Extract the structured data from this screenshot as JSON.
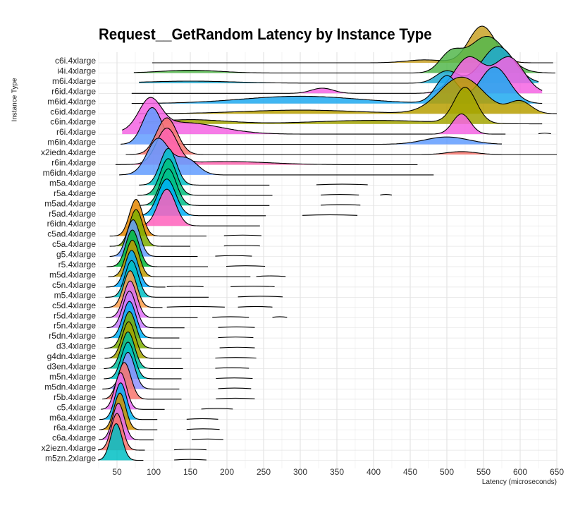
{
  "chart_data": {
    "type": "ridgeline",
    "title": "Request__GetRandom Latency by Instance Type",
    "xlabel": "Latency (microseconds)",
    "ylabel": "Instance Type",
    "xlim": [
      25,
      650
    ],
    "x_ticks": [
      50,
      100,
      150,
      200,
      250,
      300,
      350,
      400,
      450,
      500,
      550,
      600,
      650
    ],
    "grid": true,
    "legend": "none",
    "categories": [
      "c6i.4xlarge",
      "i4i.4xlarge",
      "m6i.4xlarge",
      "r6id.4xlarge",
      "m6id.4xlarge",
      "c6id.4xlarge",
      "c6in.4xlarge",
      "r6i.4xlarge",
      "m6in.4xlarge",
      "x2iedn.4xlarge",
      "r6in.4xlarge",
      "m6idn.4xlarge",
      "m5a.4xlarge",
      "r5a.4xlarge",
      "m5ad.4xlarge",
      "r5ad.4xlarge",
      "r6idn.4xlarge",
      "c5ad.4xlarge",
      "c5a.4xlarge",
      "g5.4xlarge",
      "r5.4xlarge",
      "m5d.4xlarge",
      "c5n.4xlarge",
      "m5.4xlarge",
      "c5d.4xlarge",
      "r5d.4xlarge",
      "r5n.4xlarge",
      "r5dn.4xlarge",
      "d3.4xlarge",
      "g4dn.4xlarge",
      "d3en.4xlarge",
      "m5n.4xlarge",
      "m5dn.4xlarge",
      "r5b.4xlarge",
      "c5.4xlarge",
      "m6a.4xlarge",
      "r6a.4xlarge",
      "c6a.4xlarge",
      "x2iezn.4xlarge",
      "m5zn.2xlarge"
    ],
    "series": [
      {
        "category": "c6i.4xlarge",
        "min": 98,
        "max": 645,
        "peaks": [
          [
            548,
            18,
            1.0
          ],
          [
            470,
            25,
            0.08
          ]
        ],
        "color": "#C9A227",
        "segments": []
      },
      {
        "category": "i4i.4xlarge",
        "min": 73,
        "max": 648,
        "peaks": [
          [
            555,
            25,
            0.8
          ],
          [
            505,
            15,
            0.4
          ],
          [
            150,
            40,
            0.06
          ]
        ],
        "color": "#53B74C",
        "segments": []
      },
      {
        "category": "m6i.4xlarge",
        "min": 80,
        "max": 625,
        "peaks": [
          [
            570,
            22,
            0.9
          ],
          [
            500,
            15,
            0.3
          ],
          [
            150,
            60,
            0.05
          ]
        ],
        "color": "#1FA9D0",
        "segments": []
      },
      {
        "category": "r6id.4xlarge",
        "min": 70,
        "max": 630,
        "peaks": [
          [
            530,
            20,
            0.55
          ],
          [
            585,
            20,
            0.55
          ],
          [
            330,
            15,
            0.08
          ]
        ],
        "color": "#F564E3",
        "segments": []
      },
      {
        "category": "m6id.4xlarge",
        "min": 70,
        "max": 630,
        "peaks": [
          [
            565,
            20,
            0.4
          ],
          [
            500,
            15,
            0.3
          ],
          [
            300,
            80,
            0.08
          ]
        ],
        "color": "#1FA9F0",
        "segments": []
      },
      {
        "category": "c6id.4xlarge",
        "min": 78,
        "max": 650,
        "peaks": [
          [
            520,
            30,
            0.6
          ],
          [
            600,
            15,
            0.2
          ],
          [
            300,
            80,
            0.06
          ]
        ],
        "color": "#B79F00",
        "segments": []
      },
      {
        "category": "c6in.4xlarge",
        "min": 80,
        "max": 630,
        "peaks": [
          [
            525,
            15,
            0.5
          ],
          [
            150,
            50,
            0.06
          ],
          [
            400,
            80,
            0.05
          ]
        ],
        "color": "#A3A500",
        "segments": []
      },
      {
        "category": "r6i.4xlarge",
        "min": 57,
        "max": 580,
        "peaks": [
          [
            95,
            15,
            0.5
          ],
          [
            140,
            50,
            0.2
          ],
          [
            520,
            12,
            0.35
          ]
        ],
        "color": "#F564E3",
        "segments": [
          [
            625,
            642
          ]
        ]
      },
      {
        "category": "m6in.4xlarge",
        "min": 55,
        "max": 575,
        "peaks": [
          [
            98,
            13,
            1.0
          ],
          [
            500,
            30,
            0.2
          ]
        ],
        "color": "#619CFF",
        "segments": []
      },
      {
        "category": "x2iedn.4xlarge",
        "min": 62,
        "max": 650,
        "peaks": [
          [
            118,
            14,
            1.0
          ],
          [
            520,
            20,
            0.08
          ]
        ],
        "color": "#F8766D",
        "segments": []
      },
      {
        "category": "r6in.4xlarge",
        "min": 48,
        "max": 460,
        "peaks": [
          [
            118,
            14,
            0.9
          ],
          [
            200,
            60,
            0.08
          ]
        ],
        "color": "#FF64B0",
        "segments": []
      },
      {
        "category": "m6idn.4xlarge",
        "min": 53,
        "max": 482,
        "peaks": [
          [
            106,
            15,
            0.9
          ],
          [
            145,
            15,
            0.4
          ]
        ],
        "color": "#619CFF",
        "segments": []
      },
      {
        "category": "m5a.4xlarge",
        "min": 80,
        "max": 258,
        "peaks": [
          [
            120,
            11,
            1.0
          ]
        ],
        "color": "#00BFC4",
        "segments": [
          [
            322,
            392
          ]
        ]
      },
      {
        "category": "r5a.4xlarge",
        "min": 78,
        "max": 262,
        "peaks": [
          [
            120,
            11,
            1.0
          ]
        ],
        "color": "#00BF7D",
        "segments": [
          [
            328,
            380
          ],
          [
            409,
            425
          ]
        ]
      },
      {
        "category": "m5ad.4xlarge",
        "min": 80,
        "max": 258,
        "peaks": [
          [
            120,
            11,
            1.0
          ]
        ],
        "color": "#00C08B",
        "segments": [
          [
            328,
            382
          ]
        ]
      },
      {
        "category": "r5ad.4xlarge",
        "min": 78,
        "max": 253,
        "peaks": [
          [
            118,
            12,
            1.0
          ]
        ],
        "color": "#00B0F6",
        "segments": [
          [
            303,
            378
          ]
        ]
      },
      {
        "category": "r6idn.4xlarge",
        "min": 78,
        "max": 245,
        "peaks": [
          [
            118,
            12,
            1.0
          ]
        ],
        "color": "#FF62BC",
        "segments": []
      },
      {
        "category": "c5ad.4xlarge",
        "min": 40,
        "max": 172,
        "peaks": [
          [
            76,
            9,
            1.0
          ]
        ],
        "color": "#E58700",
        "segments": [
          [
            196,
            247
          ]
        ]
      },
      {
        "category": "c5a.4xlarge",
        "min": 40,
        "max": 150,
        "peaks": [
          [
            76,
            9,
            1.0
          ]
        ],
        "color": "#7CAE00",
        "segments": [
          [
            196,
            245
          ]
        ]
      },
      {
        "category": "g5.4xlarge",
        "min": 40,
        "max": 160,
        "peaks": [
          [
            72,
            9,
            1.0
          ]
        ],
        "color": "#619CFF",
        "segments": [
          [
            184,
            234
          ]
        ]
      },
      {
        "category": "r5.4xlarge",
        "min": 36,
        "max": 174,
        "peaks": [
          [
            71,
            9,
            1.0
          ]
        ],
        "color": "#00BA38",
        "segments": [
          [
            199,
            252
          ]
        ]
      },
      {
        "category": "m5d.4xlarge",
        "min": 38,
        "max": 232,
        "peaks": [
          [
            71,
            9,
            1.0
          ]
        ],
        "color": "#C09B00",
        "segments": [
          [
            240,
            280
          ]
        ]
      },
      {
        "category": "c5n.4xlarge",
        "min": 35,
        "max": 116,
        "peaks": [
          [
            70,
            9,
            1.0
          ]
        ],
        "color": "#00A9FF",
        "segments": [
          [
            118,
            168
          ],
          [
            205,
            265
          ]
        ]
      },
      {
        "category": "m5.4xlarge",
        "min": 34,
        "max": 175,
        "peaks": [
          [
            70,
            9,
            1.0
          ]
        ],
        "color": "#00BFC4",
        "segments": [
          [
            215,
            276
          ]
        ]
      },
      {
        "category": "c5d.4xlarge",
        "min": 32,
        "max": 112,
        "peaks": [
          [
            68,
            9,
            1.0
          ]
        ],
        "color": "#FF9E4A",
        "segments": [
          [
            118,
            197
          ],
          [
            215,
            262
          ]
        ]
      },
      {
        "category": "r5d.4xlarge",
        "min": 35,
        "max": 160,
        "peaks": [
          [
            68,
            9,
            1.0
          ]
        ],
        "color": "#DF70F8",
        "segments": [
          [
            180,
            230
          ],
          [
            262,
            282
          ]
        ]
      },
      {
        "category": "r5n.4xlarge",
        "min": 36,
        "max": 142,
        "peaks": [
          [
            67,
            9,
            1.0
          ]
        ],
        "color": "#C77CFF",
        "segments": [
          [
            188,
            238
          ]
        ]
      },
      {
        "category": "r5dn.4xlarge",
        "min": 33,
        "max": 135,
        "peaks": [
          [
            67,
            9,
            1.0
          ]
        ],
        "color": "#00B0F6",
        "segments": [
          [
            188,
            236
          ]
        ]
      },
      {
        "category": "d3.4xlarge",
        "min": 33,
        "max": 138,
        "peaks": [
          [
            67,
            9,
            1.0
          ]
        ],
        "color": "#7CAE00",
        "segments": [
          [
            190,
            238
          ]
        ]
      },
      {
        "category": "g4dn.4xlarge",
        "min": 33,
        "max": 138,
        "peaks": [
          [
            66,
            9,
            1.0
          ]
        ],
        "color": "#A3A500",
        "segments": [
          [
            184,
            240
          ]
        ]
      },
      {
        "category": "d3en.4xlarge",
        "min": 32,
        "max": 140,
        "peaks": [
          [
            65,
            9,
            1.0
          ]
        ],
        "color": "#00C19F",
        "segments": [
          [
            184,
            230
          ]
        ]
      },
      {
        "category": "m5n.4xlarge",
        "min": 32,
        "max": 138,
        "peaks": [
          [
            65,
            9,
            1.0
          ]
        ],
        "color": "#00BFC4",
        "segments": [
          [
            185,
            235
          ]
        ]
      },
      {
        "category": "m5dn.4xlarge",
        "min": 30,
        "max": 135,
        "peaks": [
          [
            65,
            9,
            1.0
          ]
        ],
        "color": "#8F91FF",
        "segments": [
          [
            188,
            233
          ]
        ]
      },
      {
        "category": "r5b.4xlarge",
        "min": 30,
        "max": 138,
        "peaks": [
          [
            60,
            9,
            1.0
          ]
        ],
        "color": "#F8766D",
        "segments": [
          [
            185,
            238
          ]
        ]
      },
      {
        "category": "c5.4xlarge",
        "min": 28,
        "max": 115,
        "peaks": [
          [
            55,
            8,
            1.0
          ]
        ],
        "color": "#E76BF3",
        "segments": [
          [
            165,
            208
          ]
        ]
      },
      {
        "category": "m6a.4xlarge",
        "min": 26,
        "max": 105,
        "peaks": [
          [
            55,
            8,
            1.0
          ]
        ],
        "color": "#00B4F0",
        "segments": [
          [
            145,
            188
          ]
        ]
      },
      {
        "category": "r6a.4xlarge",
        "min": 26,
        "max": 105,
        "peaks": [
          [
            54,
            8,
            1.0
          ]
        ],
        "color": "#D39200",
        "segments": [
          [
            145,
            190
          ]
        ]
      },
      {
        "category": "c6a.4xlarge",
        "min": 25,
        "max": 100,
        "peaks": [
          [
            52,
            8,
            1.0
          ]
        ],
        "color": "#E76BF3",
        "segments": [
          [
            152,
            195
          ]
        ]
      },
      {
        "category": "x2iezn.4xlarge",
        "min": 24,
        "max": 88,
        "peaks": [
          [
            50,
            8,
            1.0
          ]
        ],
        "color": "#F8766D",
        "segments": [
          [
            128,
            172
          ]
        ]
      },
      {
        "category": "m5zn.2xlarge",
        "min": 24,
        "max": 86,
        "peaks": [
          [
            49,
            8,
            1.0
          ]
        ],
        "color": "#00BFC4",
        "segments": [
          [
            128,
            172
          ]
        ]
      }
    ]
  }
}
